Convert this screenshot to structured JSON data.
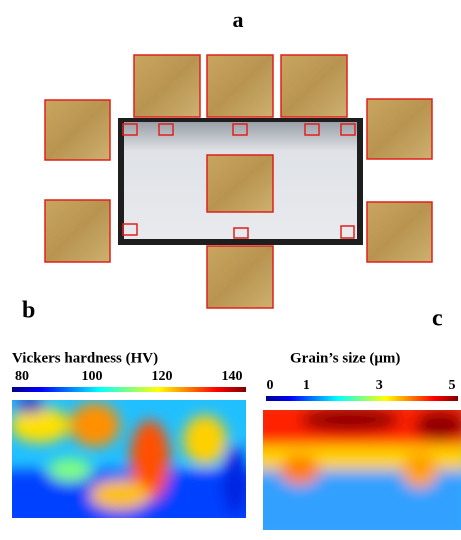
{
  "panel_labels": {
    "a": "a",
    "b": "b",
    "c": "c"
  },
  "hardness": {
    "title": "Vickers hardness (HV)",
    "lim": [
      80,
      140
    ],
    "ticks": [
      80,
      100,
      120,
      140
    ]
  },
  "grain": {
    "title": "Grain’s size (μm)",
    "lim": [
      0,
      5
    ],
    "ticks": [
      0,
      1,
      3,
      5
    ]
  }
}
